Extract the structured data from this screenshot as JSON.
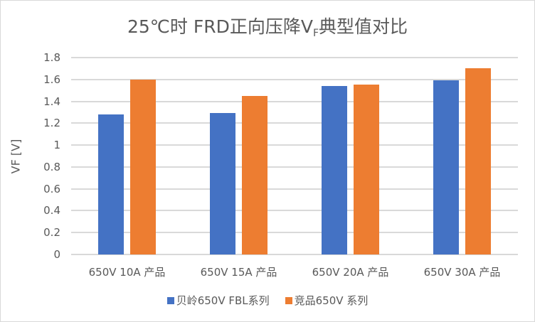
{
  "chart_data": {
    "type": "bar",
    "title": "25℃时 FRD正向压降V_F典型值对比",
    "title_main": "25℃时 FRD正向压降V",
    "title_sub": "F",
    "title_tail": "典型值对比",
    "xlabel": "",
    "ylabel": "VF [V]",
    "ylim": [
      0,
      1.8
    ],
    "yticks": [
      "0",
      "0.2",
      "0.4",
      "0.6",
      "0.8",
      "1",
      "1.2",
      "1.4",
      "1.6",
      "1.8"
    ],
    "grid": true,
    "legend_position": "bottom",
    "categories": [
      "650V 10A 产品",
      "650V 15A 产品",
      "650V 20A 产品",
      "650V 30A 产品"
    ],
    "series": [
      {
        "name": "贝岭650V FBL系列",
        "color": "#4472c4",
        "values": [
          1.28,
          1.29,
          1.54,
          1.59
        ]
      },
      {
        "name": "竞品650V 系列",
        "color": "#ed7d31",
        "values": [
          1.6,
          1.45,
          1.55,
          1.7
        ]
      }
    ]
  }
}
